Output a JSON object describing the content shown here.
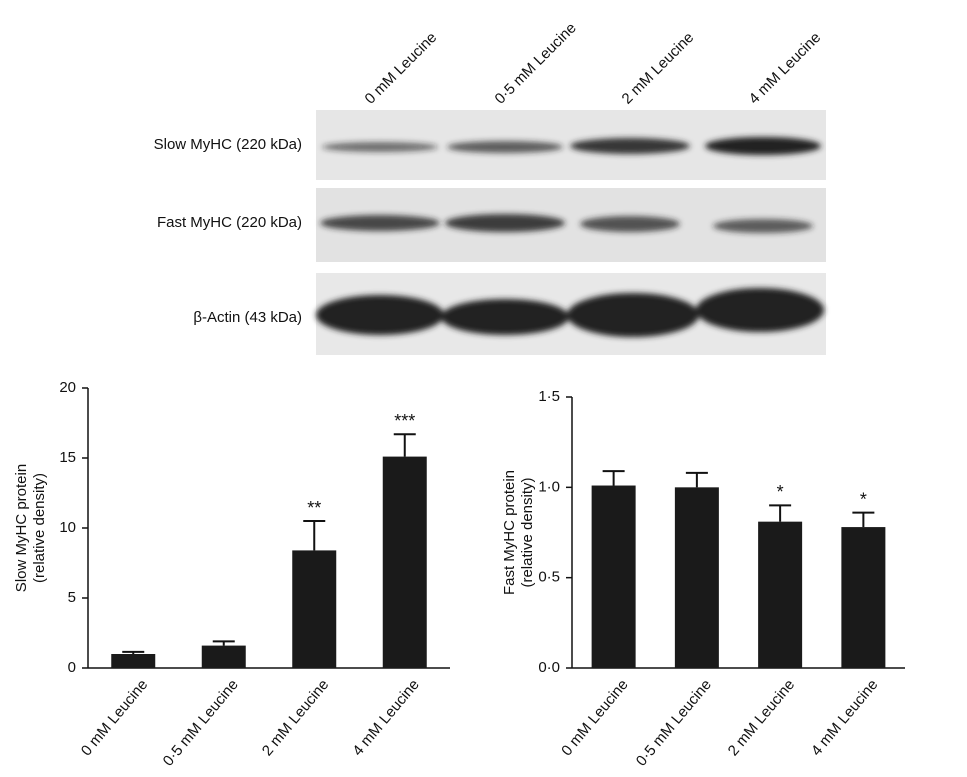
{
  "blot": {
    "lanes": [
      "0 mM Leucine",
      "0·5 mM Leucine",
      "2 mM Leucine",
      "4 mM Leucine"
    ],
    "bands": [
      "Slow MyHC (220 kDa)",
      "Fast MyHC (220 kDa)",
      "β-Actin (43 kDa)"
    ]
  },
  "chart_data": [
    {
      "type": "bar",
      "ylabel": [
        "Slow MyHC protein",
        "(relative density)"
      ],
      "categories": [
        "0 mM Leucine",
        "0·5 mM Leucine",
        "2 mM Leucine",
        "4 mM Leucine"
      ],
      "values": [
        1.0,
        1.6,
        8.4,
        15.1
      ],
      "errors": [
        0.15,
        0.3,
        2.1,
        1.6
      ],
      "annotations": [
        null,
        null,
        "**",
        "***"
      ],
      "color": "#1a1a1a",
      "ylim": [
        0,
        20
      ],
      "yticks": [
        0,
        5,
        10,
        15,
        20
      ]
    },
    {
      "type": "bar",
      "ylabel": [
        "Fast MyHC protein",
        "(relative density)"
      ],
      "categories": [
        "0 mM Leucine",
        "0·5 mM Leucine",
        "2 mM Leucine",
        "4 mM Leucine"
      ],
      "values": [
        1.01,
        1.0,
        0.81,
        0.78
      ],
      "errors": [
        0.08,
        0.08,
        0.09,
        0.08
      ],
      "annotations": [
        null,
        null,
        "*",
        "*"
      ],
      "color": "#1a1a1a",
      "ylim": [
        0,
        1.5
      ],
      "yticks": [
        {
          "value": 0,
          "label": "0·0"
        },
        {
          "value": 0.5,
          "label": "0·5"
        },
        {
          "value": 1,
          "label": "1·0"
        },
        {
          "value": 1.5,
          "label": "1·5"
        }
      ]
    }
  ]
}
